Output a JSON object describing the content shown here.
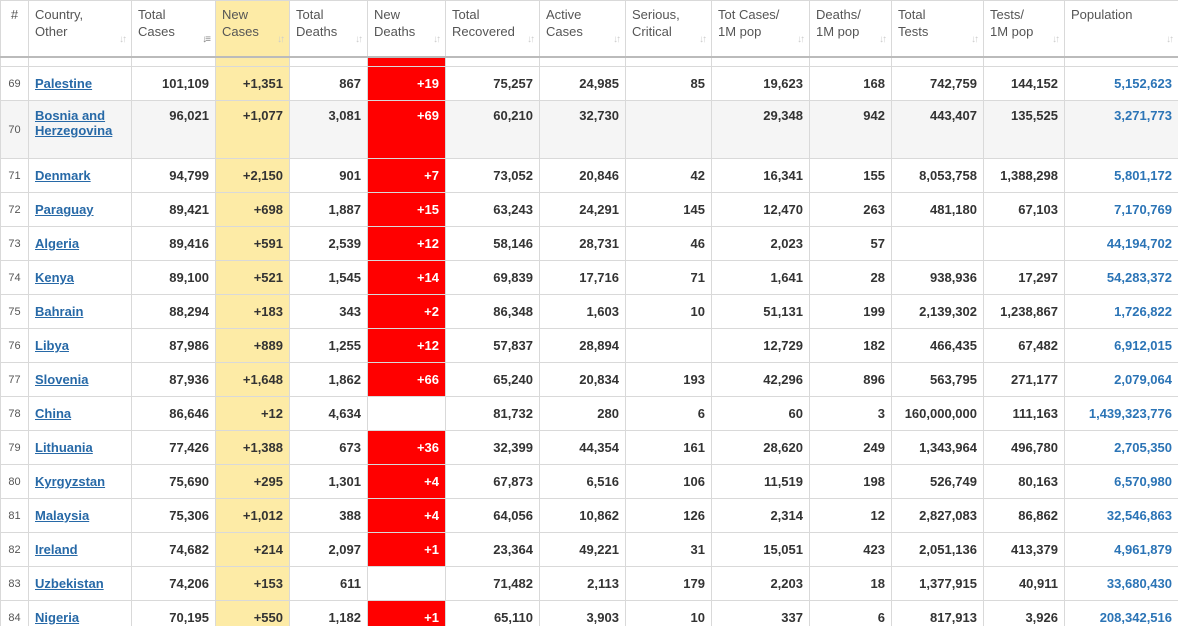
{
  "columns": [
    {
      "label": "#"
    },
    {
      "label": "Country,\nOther"
    },
    {
      "label": "Total\nCases"
    },
    {
      "label": "New\nCases"
    },
    {
      "label": "Total\nDeaths"
    },
    {
      "label": "New\nDeaths"
    },
    {
      "label": "Total\nRecovered"
    },
    {
      "label": "Active\nCases"
    },
    {
      "label": "Serious,\nCritical"
    },
    {
      "label": "Tot Cases/\n1M pop"
    },
    {
      "label": "Deaths/\n1M pop"
    },
    {
      "label": "Total\nTests"
    },
    {
      "label": "Tests/\n1M pop"
    },
    {
      "label": "Population"
    }
  ],
  "sort_icons": {
    "inactive": "sort-updown-icon",
    "active": "sort-down-icon"
  },
  "colors": {
    "new_cases_bg": "#fdeba6",
    "new_deaths_bg": "#ff0000",
    "link": "#2769a7"
  },
  "rows": [
    {
      "idx": "69",
      "country": "Palestine",
      "total_cases": "101,109",
      "new_cases": "+1,351",
      "total_deaths": "867",
      "new_deaths": "+19",
      "recovered": "75,257",
      "active": "24,985",
      "critical": "85",
      "cases_per_m": "19,623",
      "deaths_per_m": "168",
      "tests": "742,759",
      "tests_per_m": "144,152",
      "population": "5,152,623"
    },
    {
      "idx": "70",
      "country": "Bosnia and Herzegovina",
      "total_cases": "96,021",
      "new_cases": "+1,077",
      "total_deaths": "3,081",
      "new_deaths": "+69",
      "recovered": "60,210",
      "active": "32,730",
      "critical": "",
      "cases_per_m": "29,348",
      "deaths_per_m": "942",
      "tests": "443,407",
      "tests_per_m": "135,525",
      "population": "3,271,773"
    },
    {
      "idx": "71",
      "country": "Denmark",
      "total_cases": "94,799",
      "new_cases": "+2,150",
      "total_deaths": "901",
      "new_deaths": "+7",
      "recovered": "73,052",
      "active": "20,846",
      "critical": "42",
      "cases_per_m": "16,341",
      "deaths_per_m": "155",
      "tests": "8,053,758",
      "tests_per_m": "1,388,298",
      "population": "5,801,172"
    },
    {
      "idx": "72",
      "country": "Paraguay",
      "total_cases": "89,421",
      "new_cases": "+698",
      "total_deaths": "1,887",
      "new_deaths": "+15",
      "recovered": "63,243",
      "active": "24,291",
      "critical": "145",
      "cases_per_m": "12,470",
      "deaths_per_m": "263",
      "tests": "481,180",
      "tests_per_m": "67,103",
      "population": "7,170,769"
    },
    {
      "idx": "73",
      "country": "Algeria",
      "total_cases": "89,416",
      "new_cases": "+591",
      "total_deaths": "2,539",
      "new_deaths": "+12",
      "recovered": "58,146",
      "active": "28,731",
      "critical": "46",
      "cases_per_m": "2,023",
      "deaths_per_m": "57",
      "tests": "",
      "tests_per_m": "",
      "population": "44,194,702"
    },
    {
      "idx": "74",
      "country": "Kenya",
      "total_cases": "89,100",
      "new_cases": "+521",
      "total_deaths": "1,545",
      "new_deaths": "+14",
      "recovered": "69,839",
      "active": "17,716",
      "critical": "71",
      "cases_per_m": "1,641",
      "deaths_per_m": "28",
      "tests": "938,936",
      "tests_per_m": "17,297",
      "population": "54,283,372"
    },
    {
      "idx": "75",
      "country": "Bahrain",
      "total_cases": "88,294",
      "new_cases": "+183",
      "total_deaths": "343",
      "new_deaths": "+2",
      "recovered": "86,348",
      "active": "1,603",
      "critical": "10",
      "cases_per_m": "51,131",
      "deaths_per_m": "199",
      "tests": "2,139,302",
      "tests_per_m": "1,238,867",
      "population": "1,726,822"
    },
    {
      "idx": "76",
      "country": "Libya",
      "total_cases": "87,986",
      "new_cases": "+889",
      "total_deaths": "1,255",
      "new_deaths": "+12",
      "recovered": "57,837",
      "active": "28,894",
      "critical": "",
      "cases_per_m": "12,729",
      "deaths_per_m": "182",
      "tests": "466,435",
      "tests_per_m": "67,482",
      "population": "6,912,015"
    },
    {
      "idx": "77",
      "country": "Slovenia",
      "total_cases": "87,936",
      "new_cases": "+1,648",
      "total_deaths": "1,862",
      "new_deaths": "+66",
      "recovered": "65,240",
      "active": "20,834",
      "critical": "193",
      "cases_per_m": "42,296",
      "deaths_per_m": "896",
      "tests": "563,795",
      "tests_per_m": "271,177",
      "population": "2,079,064"
    },
    {
      "idx": "78",
      "country": "China",
      "total_cases": "86,646",
      "new_cases": "+12",
      "total_deaths": "4,634",
      "new_deaths": "",
      "recovered": "81,732",
      "active": "280",
      "critical": "6",
      "cases_per_m": "60",
      "deaths_per_m": "3",
      "tests": "160,000,000",
      "tests_per_m": "111,163",
      "population": "1,439,323,776"
    },
    {
      "idx": "79",
      "country": "Lithuania",
      "total_cases": "77,426",
      "new_cases": "+1,388",
      "total_deaths": "673",
      "new_deaths": "+36",
      "recovered": "32,399",
      "active": "44,354",
      "critical": "161",
      "cases_per_m": "28,620",
      "deaths_per_m": "249",
      "tests": "1,343,964",
      "tests_per_m": "496,780",
      "population": "2,705,350"
    },
    {
      "idx": "80",
      "country": "Kyrgyzstan",
      "total_cases": "75,690",
      "new_cases": "+295",
      "total_deaths": "1,301",
      "new_deaths": "+4",
      "recovered": "67,873",
      "active": "6,516",
      "critical": "106",
      "cases_per_m": "11,519",
      "deaths_per_m": "198",
      "tests": "526,749",
      "tests_per_m": "80,163",
      "population": "6,570,980"
    },
    {
      "idx": "81",
      "country": "Malaysia",
      "total_cases": "75,306",
      "new_cases": "+1,012",
      "total_deaths": "388",
      "new_deaths": "+4",
      "recovered": "64,056",
      "active": "10,862",
      "critical": "126",
      "cases_per_m": "2,314",
      "deaths_per_m": "12",
      "tests": "2,827,083",
      "tests_per_m": "86,862",
      "population": "32,546,863"
    },
    {
      "idx": "82",
      "country": "Ireland",
      "total_cases": "74,682",
      "new_cases": "+214",
      "total_deaths": "2,097",
      "new_deaths": "+1",
      "recovered": "23,364",
      "active": "49,221",
      "critical": "31",
      "cases_per_m": "15,051",
      "deaths_per_m": "423",
      "tests": "2,051,136",
      "tests_per_m": "413,379",
      "population": "4,961,879"
    },
    {
      "idx": "83",
      "country": "Uzbekistan",
      "total_cases": "74,206",
      "new_cases": "+153",
      "total_deaths": "611",
      "new_deaths": "",
      "recovered": "71,482",
      "active": "2,113",
      "critical": "179",
      "cases_per_m": "2,203",
      "deaths_per_m": "18",
      "tests": "1,377,915",
      "tests_per_m": "40,911",
      "population": "33,680,430"
    },
    {
      "idx": "84",
      "country": "Nigeria",
      "total_cases": "70,195",
      "new_cases": "+550",
      "total_deaths": "1,182",
      "new_deaths": "+1",
      "recovered": "65,110",
      "active": "3,903",
      "critical": "10",
      "cases_per_m": "337",
      "deaths_per_m": "6",
      "tests": "817,913",
      "tests_per_m": "3,926",
      "population": "208,342,516"
    }
  ]
}
